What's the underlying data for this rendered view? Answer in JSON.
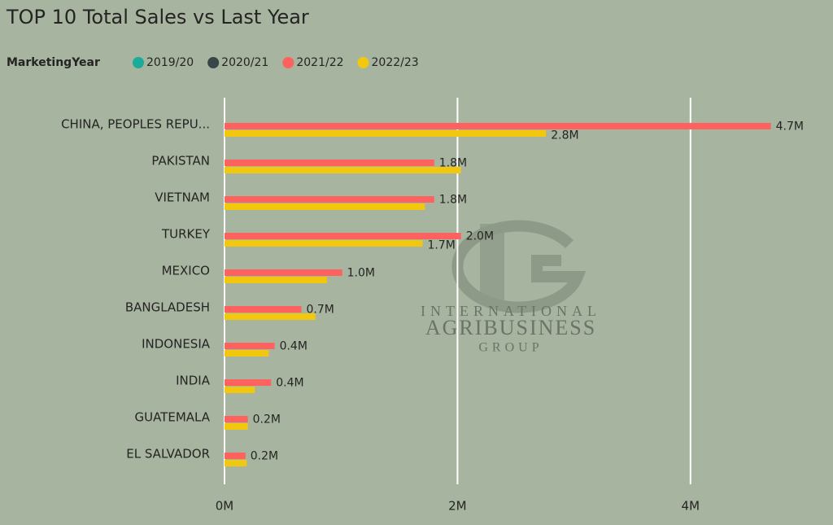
{
  "chart_data": {
    "type": "bar",
    "orientation": "horizontal",
    "title": "TOP 10 Total Sales vs Last Year",
    "legend_title": "MarketingYear",
    "categories": [
      "CHINA, PEOPLES REPU...",
      "PAKISTAN",
      "VIETNAM",
      "TURKEY",
      "MEXICO",
      "BANGLADESH",
      "INDONESIA",
      "INDIA",
      "GUATEMALA",
      "EL SALVADOR"
    ],
    "series": [
      {
        "name": "2019/20",
        "color": "#1aab9b",
        "values": [
          null,
          null,
          null,
          null,
          null,
          null,
          null,
          null,
          null,
          null
        ]
      },
      {
        "name": "2020/21",
        "color": "#374649",
        "values": [
          null,
          null,
          null,
          null,
          null,
          null,
          null,
          null,
          null,
          null
        ]
      },
      {
        "name": "2021/22",
        "color": "#fd625e",
        "values": [
          4.69,
          1.8,
          1.8,
          2.03,
          1.01,
          0.66,
          0.43,
          0.4,
          0.2,
          0.18
        ],
        "value_labels": [
          "4.7M",
          "1.8M",
          "1.8M",
          "2.0M",
          "1.0M",
          "0.7M",
          "0.4M",
          "0.4M",
          "0.2M",
          "0.2M"
        ]
      },
      {
        "name": "2022/23",
        "color": "#f2c80f",
        "values": [
          2.76,
          2.03,
          1.72,
          1.7,
          0.88,
          0.78,
          0.38,
          0.26,
          0.2,
          0.19
        ],
        "value_labels": [
          "2.8M",
          null,
          null,
          "1.7M",
          null,
          null,
          null,
          null,
          null,
          null
        ]
      }
    ],
    "xlim": [
      0,
      5
    ],
    "xticks": [
      {
        "value": 0,
        "label": "0M"
      },
      {
        "value": 2,
        "label": "2M"
      },
      {
        "value": 4,
        "label": "4M"
      }
    ],
    "grid": true,
    "watermark": [
      "INTERNATIONAL",
      "AGRIBUSINESS",
      "GROUP"
    ]
  }
}
